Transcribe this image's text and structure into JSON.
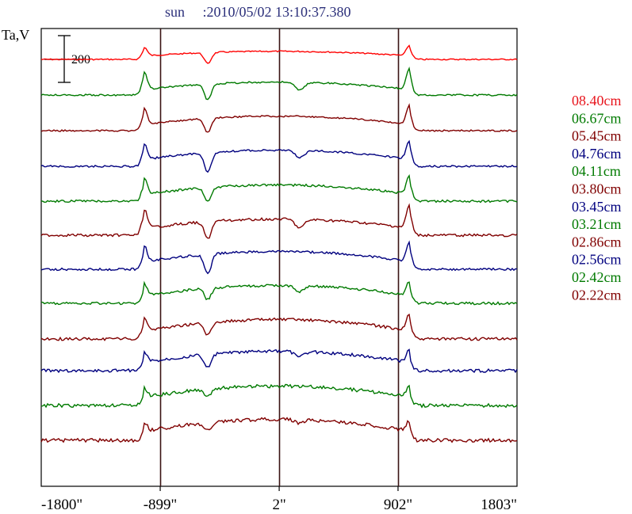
{
  "chart_data": {
    "type": "line",
    "title": "sun     :2010/05/02 13:10:37.380",
    "ylabel": "Ta,V",
    "scale_bar_label": "200",
    "x_ticks": [
      "-1800\"",
      "-899\"",
      "2\"",
      "902\"",
      "1803\""
    ],
    "x_tick_values": [
      -1800,
      -899,
      2,
      902,
      1803
    ],
    "xlim": [
      -1800,
      1803
    ],
    "vertical_markers": [
      -899,
      2,
      902
    ],
    "series": [
      {
        "name": "08.40cm",
        "color": "#ff0000",
        "baseline": 75,
        "scale": 0.5,
        "bias": 0.5,
        "noise": 0.4
      },
      {
        "name": "06.67cm",
        "color": "#007a00",
        "baseline": 120,
        "scale": 1.0,
        "bias": 0.8,
        "noise": 0.5
      },
      {
        "name": "05.45cm",
        "color": "#800000",
        "baseline": 165,
        "scale": 0.9,
        "bias": 0.9,
        "noise": 0.5
      },
      {
        "name": "04.76cm",
        "color": "#00007f",
        "baseline": 210,
        "scale": 0.9,
        "bias": 1.0,
        "noise": 0.6
      },
      {
        "name": "04.11cm",
        "color": "#007a00",
        "baseline": 254,
        "scale": 0.9,
        "bias": 1.0,
        "noise": 0.7
      },
      {
        "name": "03.80cm",
        "color": "#800000",
        "baseline": 297,
        "scale": 1.1,
        "bias": 1.0,
        "noise": 0.8
      },
      {
        "name": "03.45cm",
        "color": "#00007f",
        "baseline": 340,
        "scale": 0.9,
        "bias": 1.1,
        "noise": 0.7
      },
      {
        "name": "03.21cm",
        "color": "#007a00",
        "baseline": 383,
        "scale": 0.7,
        "bias": 1.1,
        "noise": 0.8
      },
      {
        "name": "02.86cm",
        "color": "#800000",
        "baseline": 428,
        "scale": 0.8,
        "bias": 1.2,
        "noise": 0.9
      },
      {
        "name": "02.56cm",
        "color": "#00007f",
        "baseline": 468,
        "scale": 0.6,
        "bias": 1.2,
        "noise": 1.0
      },
      {
        "name": "02.42cm",
        "color": "#007a00",
        "baseline": 512,
        "scale": 0.5,
        "bias": 1.2,
        "noise": 1.1
      },
      {
        "name": "02.22cm",
        "color": "#800000",
        "baseline": 556,
        "scale": 0.5,
        "bias": 1.3,
        "noise": 1.1
      }
    ]
  }
}
